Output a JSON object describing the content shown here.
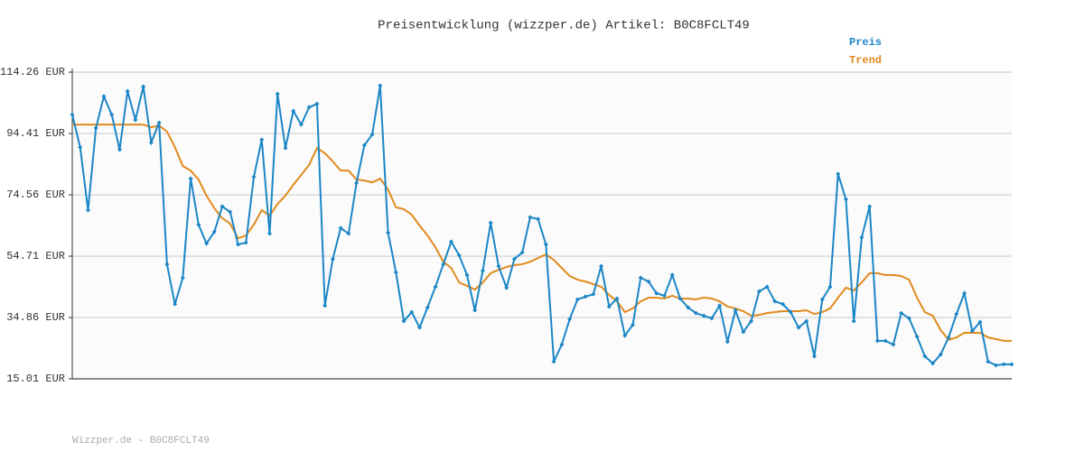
{
  "chart_data": {
    "type": "line",
    "title": "Preisentwicklung (wizzper.de) Artikel: B0C8FCLT49",
    "footer": "Wizzper.de - B0C8FCLT49",
    "ylim": [
      15.01,
      114.26
    ],
    "yticks": [
      {
        "value": 15.01,
        "label": "15.01 EUR"
      },
      {
        "value": 34.86,
        "label": "34.86 EUR"
      },
      {
        "value": 54.71,
        "label": "54.71 EUR"
      },
      {
        "value": 74.56,
        "label": "74.56 EUR"
      },
      {
        "value": 94.41,
        "label": "94.41 EUR"
      },
      {
        "value": 114.26,
        "label": "114.26 EUR"
      }
    ],
    "grid": true,
    "series": [
      {
        "name": "Preis",
        "color": "#1b86c6",
        "values": [
          100.5,
          90.0,
          69.6,
          96.2,
          106.4,
          100.5,
          89.2,
          108.1,
          98.8,
          109.6,
          91.5,
          97.9,
          52.1,
          39.2,
          47.7,
          79.8,
          64.9,
          58.8,
          62.6,
          70.8,
          69.0,
          58.5,
          59.1,
          80.4,
          92.4,
          62.0,
          107.2,
          89.7,
          101.7,
          97.3,
          102.9,
          104.0,
          38.7,
          53.8,
          63.8,
          62.0,
          78.4,
          90.6,
          94.1,
          109.9,
          62.3,
          49.5,
          33.7,
          36.6,
          31.6,
          38.1,
          44.8,
          52.1,
          59.4,
          55.0,
          48.6,
          37.2,
          50.0,
          65.5,
          51.5,
          44.5,
          53.8,
          55.9,
          67.3,
          66.7,
          58.5,
          20.6,
          26.1,
          34.3,
          40.7,
          41.6,
          42.4,
          51.5,
          38.4,
          41.0,
          29.0,
          32.5,
          47.7,
          46.5,
          42.7,
          41.9,
          48.6,
          41.0,
          38.1,
          36.3,
          35.4,
          34.6,
          38.7,
          27.0,
          37.2,
          30.2,
          33.7,
          43.3,
          44.8,
          40.1,
          39.2,
          36.6,
          31.6,
          33.7,
          22.3,
          40.7,
          44.8,
          81.3,
          73.1,
          33.7,
          60.8,
          70.8,
          27.3,
          27.3,
          26.1,
          36.3,
          34.6,
          28.7,
          22.3,
          20.0,
          22.9,
          28.4,
          36.0,
          42.7,
          30.5,
          33.4,
          20.6,
          19.4,
          19.7,
          19.7
        ]
      },
      {
        "name": "Trend",
        "color": "#e08a1e",
        "values": [
          97.3,
          97.3,
          97.3,
          97.3,
          97.3,
          97.3,
          97.3,
          97.3,
          97.3,
          97.3,
          96.4,
          97.0,
          95.0,
          90.0,
          83.9,
          82.4,
          79.5,
          74.3,
          70.2,
          67.0,
          65.2,
          60.5,
          61.4,
          64.9,
          69.6,
          67.8,
          71.6,
          74.3,
          77.8,
          81.0,
          84.2,
          89.7,
          88.0,
          85.4,
          82.4,
          82.4,
          79.5,
          79.2,
          78.6,
          79.8,
          76.3,
          70.5,
          69.9,
          68.1,
          64.6,
          61.4,
          57.6,
          52.9,
          50.9,
          46.2,
          45.1,
          43.9,
          46.2,
          49.2,
          50.3,
          51.2,
          51.8,
          52.1,
          52.9,
          54.1,
          55.3,
          53.5,
          50.9,
          48.3,
          47.1,
          46.5,
          45.7,
          44.8,
          42.2,
          40.1,
          36.6,
          37.8,
          40.1,
          41.3,
          41.3,
          41.0,
          41.9,
          41.0,
          41.0,
          40.7,
          41.3,
          41.0,
          40.1,
          38.4,
          37.8,
          36.9,
          35.4,
          35.7,
          36.3,
          36.6,
          36.9,
          36.9,
          36.9,
          37.2,
          36.0,
          36.6,
          37.8,
          41.3,
          44.5,
          43.6,
          46.2,
          49.2,
          49.2,
          48.6,
          48.6,
          48.3,
          47.1,
          41.3,
          36.6,
          35.4,
          30.8,
          27.6,
          28.4,
          29.9,
          29.9,
          29.9,
          28.4,
          27.9,
          27.3,
          27.3
        ]
      }
    ]
  }
}
